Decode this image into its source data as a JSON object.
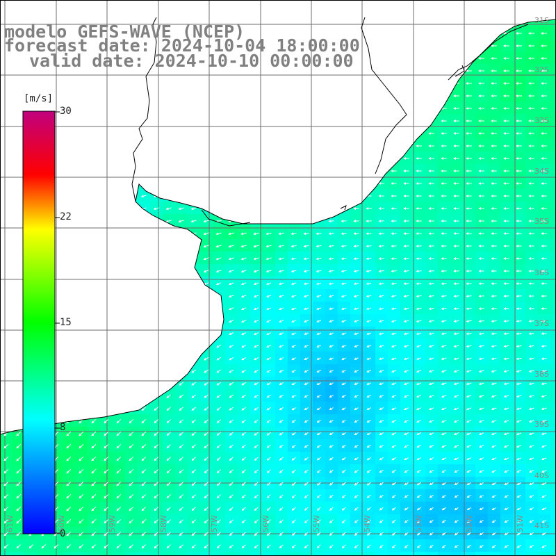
{
  "header": {
    "title": "modelo GEFS-WAVE (NCEP)",
    "forecast_date": "forecast date: 2024-10-04 18:00:00",
    "valid_date": "valid date: 2024-10-10 00:00:00"
  },
  "colorbar": {
    "unit": "[m/s]",
    "ticks": [
      "30",
      "22",
      "15",
      "8",
      "0"
    ],
    "tick_values": [
      30,
      22,
      15,
      8,
      0
    ],
    "range": [
      0,
      30
    ],
    "colors": [
      "#0000ff",
      "#00ffff",
      "#00ff00",
      "#ffff00",
      "#ff0000",
      "#c0007f"
    ]
  },
  "lat_labels": [
    "31S",
    "32S",
    "33S",
    "34S",
    "35S",
    "36S",
    "37S",
    "38S",
    "39S",
    "40S",
    "41S"
  ],
  "lon_labels": [
    "61W",
    "60W",
    "59W",
    "58W",
    "57W",
    "56W",
    "55W",
    "54W",
    "53W",
    "52W",
    "51W"
  ],
  "chart_data": {
    "type": "heatmap",
    "variable": "wind speed",
    "unit": "[m/s]",
    "lat_range": [
      "31S",
      "41S"
    ],
    "lon_range": [
      "61W",
      "51W"
    ],
    "wind_direction": "from east / northeast",
    "speed_range_shown": [
      6,
      13
    ]
  }
}
